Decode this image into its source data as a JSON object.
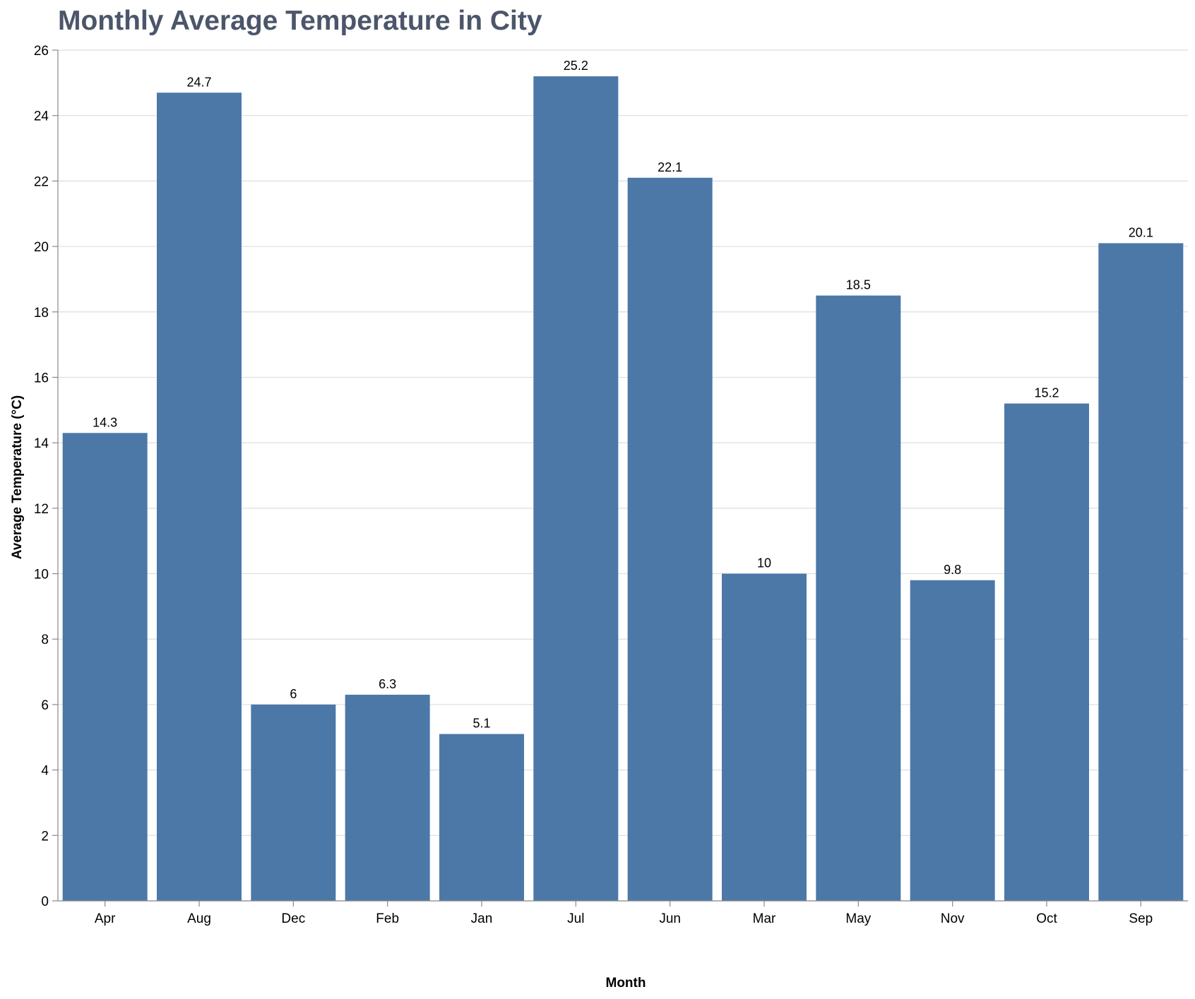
{
  "chart_data": {
    "type": "bar",
    "title": "Monthly Average Temperature in City",
    "xlabel": "Month",
    "ylabel": "Average Temperature (°C)",
    "categories": [
      "Apr",
      "Aug",
      "Dec",
      "Feb",
      "Jan",
      "Jul",
      "Jun",
      "Mar",
      "May",
      "Nov",
      "Oct",
      "Sep"
    ],
    "values": [
      14.3,
      24.7,
      6,
      6.3,
      5.1,
      25.2,
      22.1,
      10,
      18.5,
      9.8,
      15.2,
      20.1
    ],
    "value_labels": [
      "14.3",
      "24.7",
      "6",
      "6.3",
      "5.1",
      "25.2",
      "22.1",
      "10",
      "18.5",
      "9.8",
      "15.2",
      "20.1"
    ],
    "ylim": [
      0,
      26
    ],
    "yticks": [
      0,
      2,
      4,
      6,
      8,
      10,
      12,
      14,
      16,
      18,
      20,
      22,
      24,
      26
    ],
    "grid": true,
    "legend": "none",
    "colors": {
      "bar": "#4c78a8",
      "title": "#4c566a",
      "grid": "#dddddd",
      "axis": "#888888",
      "text": "#000000"
    }
  }
}
